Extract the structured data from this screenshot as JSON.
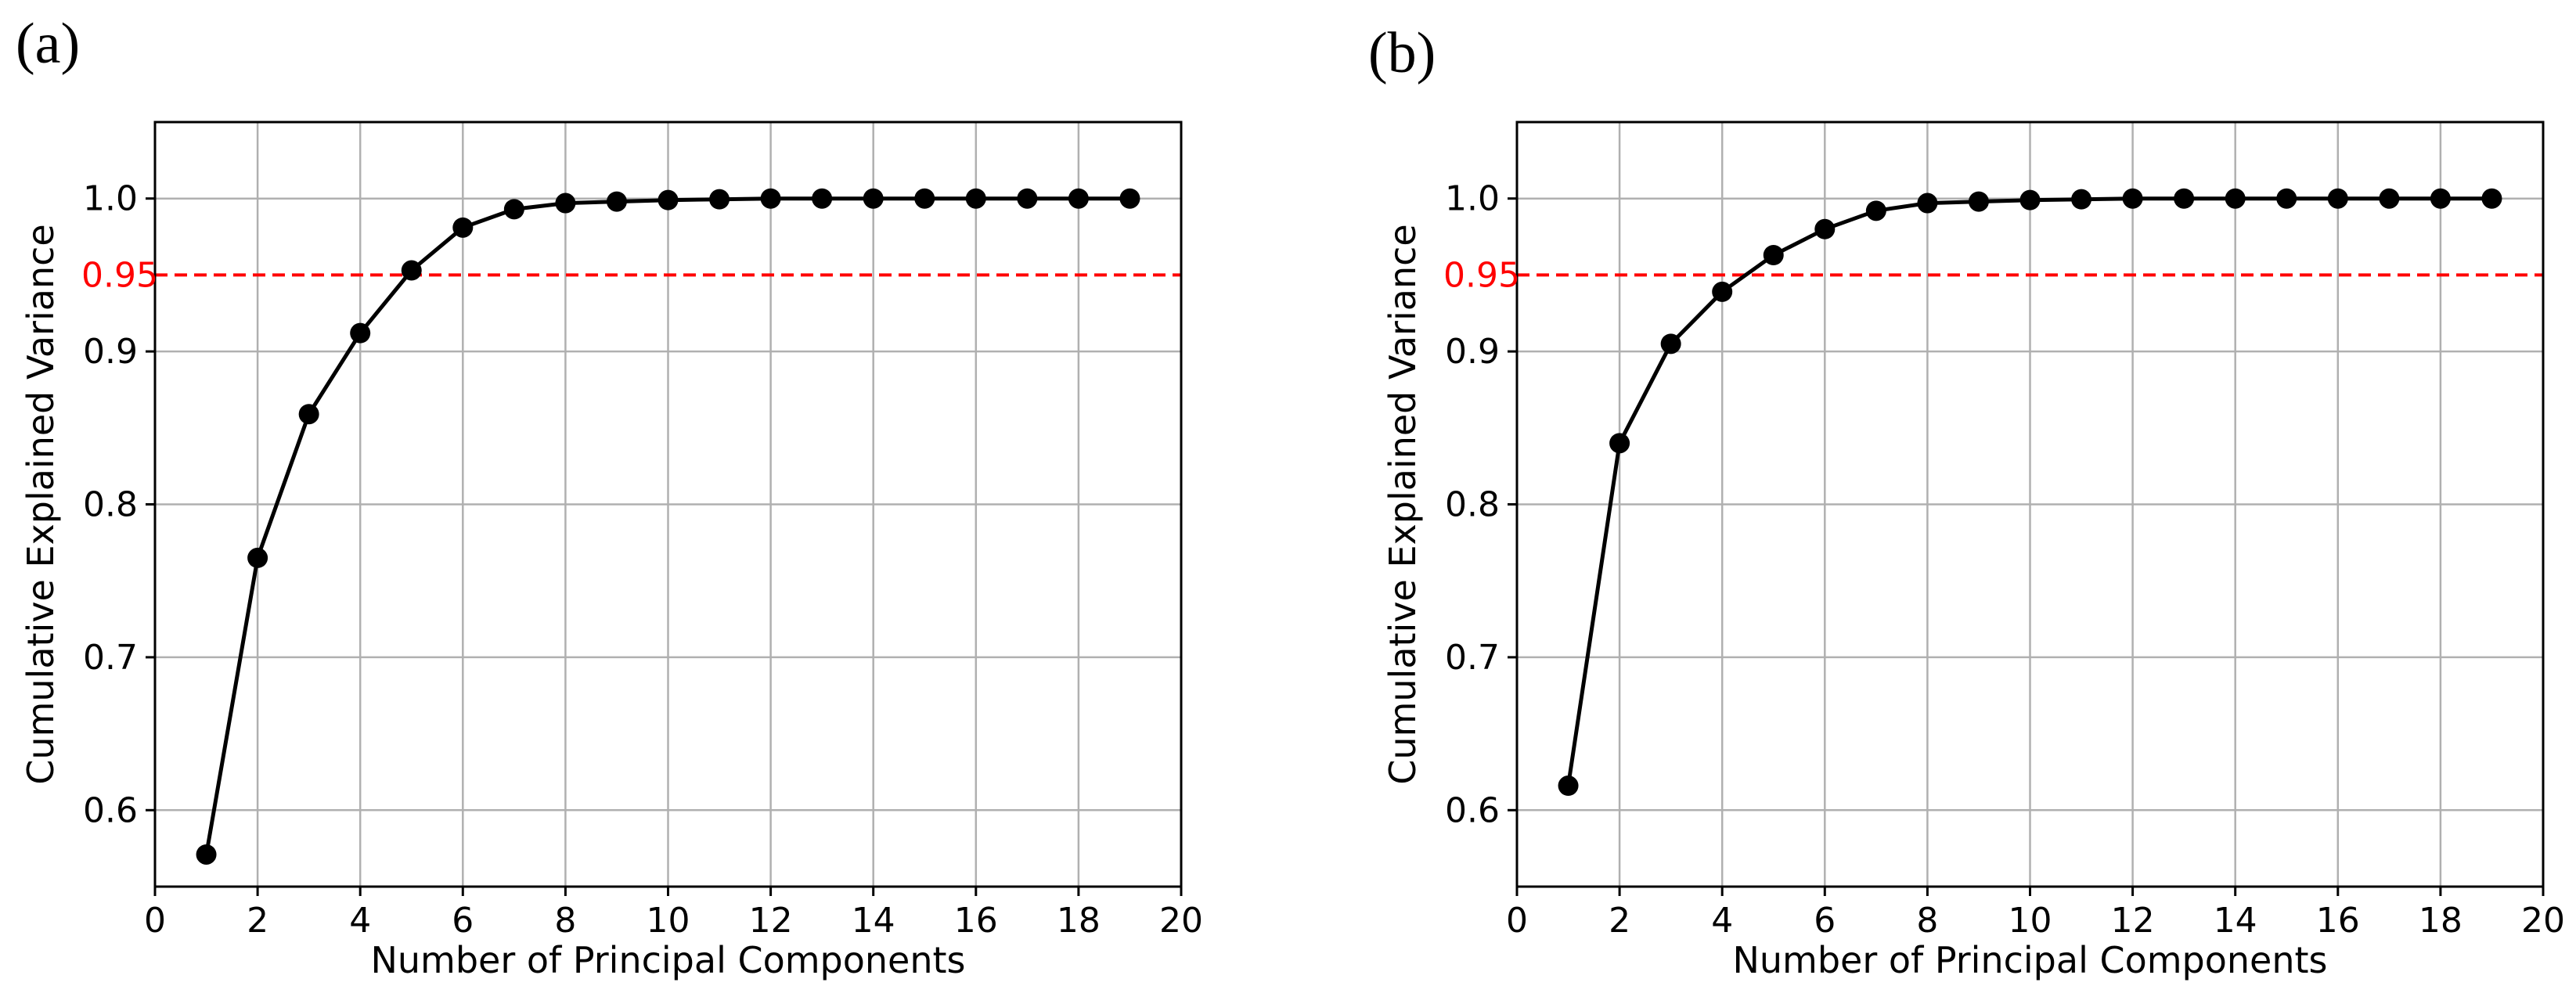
{
  "colors": {
    "series": "#000000",
    "reference": "#ff0000",
    "grid": "#b0b0b0"
  },
  "chart_data": [
    {
      "type": "line",
      "panel_label": "(a)",
      "title": "",
      "xlabel": "Number of Principal Components",
      "ylabel": "Cumulative Explained Variance",
      "xlim": [
        0,
        20
      ],
      "ylim": [
        0.55,
        1.05
      ],
      "x_ticks": [
        0,
        2,
        4,
        6,
        8,
        10,
        12,
        14,
        16,
        18,
        20
      ],
      "y_ticks": [
        0.6,
        0.7,
        0.8,
        0.9,
        1.0
      ],
      "grid": true,
      "reference_line": {
        "y": 0.95,
        "label": "0.95",
        "style": "dashed"
      },
      "series": [
        {
          "name": "cumulative explained variance",
          "x": [
            1,
            2,
            3,
            4,
            5,
            6,
            7,
            8,
            9,
            10,
            11,
            12,
            13,
            14,
            15,
            16,
            17,
            18,
            19
          ],
          "y": [
            0.571,
            0.765,
            0.859,
            0.912,
            0.953,
            0.981,
            0.993,
            0.997,
            0.998,
            0.999,
            0.9995,
            1.0,
            1.0,
            1.0,
            1.0,
            1.0,
            1.0,
            1.0,
            1.0
          ]
        }
      ]
    },
    {
      "type": "line",
      "panel_label": "(b)",
      "title": "",
      "xlabel": "Number of Principal Components",
      "ylabel": "Cumulative Explained Variance",
      "xlim": [
        0,
        20
      ],
      "ylim": [
        0.55,
        1.05
      ],
      "x_ticks": [
        0,
        2,
        4,
        6,
        8,
        10,
        12,
        14,
        16,
        18,
        20
      ],
      "y_ticks": [
        0.6,
        0.7,
        0.8,
        0.9,
        1.0
      ],
      "grid": true,
      "reference_line": {
        "y": 0.95,
        "label": "0.95",
        "style": "dashed"
      },
      "series": [
        {
          "name": "cumulative explained variance",
          "x": [
            1,
            2,
            3,
            4,
            5,
            6,
            7,
            8,
            9,
            10,
            11,
            12,
            13,
            14,
            15,
            16,
            17,
            18,
            19
          ],
          "y": [
            0.616,
            0.84,
            0.905,
            0.939,
            0.963,
            0.98,
            0.992,
            0.997,
            0.998,
            0.999,
            0.9995,
            1.0,
            1.0,
            1.0,
            1.0,
            1.0,
            1.0,
            1.0,
            1.0
          ]
        }
      ]
    }
  ]
}
